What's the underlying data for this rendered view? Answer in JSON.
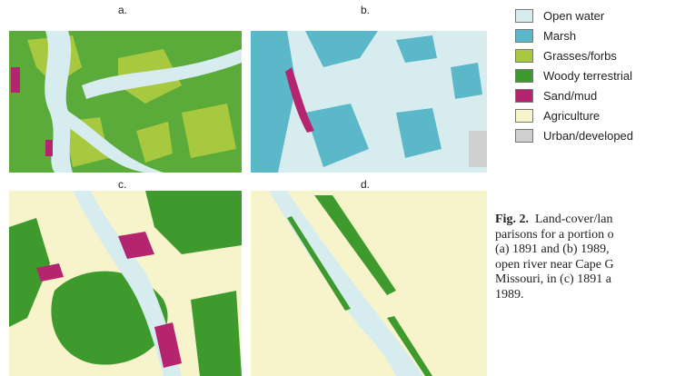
{
  "panels": [
    {
      "label": "a."
    },
    {
      "label": "b."
    },
    {
      "label": "c."
    },
    {
      "label": "d."
    }
  ],
  "legend": [
    {
      "label": "Open water",
      "color": "#d7ecef"
    },
    {
      "label": "Marsh",
      "color": "#5bb8c8"
    },
    {
      "label": "Grasses/forbs",
      "color": "#a8c840"
    },
    {
      "label": "Woody terrestrial",
      "color": "#3f9a2e"
    },
    {
      "label": "Sand/mud",
      "color": "#b5246e"
    },
    {
      "label": "Agriculture",
      "color": "#f7f4cc"
    },
    {
      "label": "Urban/developed",
      "color": "#cfcfcf"
    }
  ],
  "caption": {
    "label": "Fig. 2.",
    "lines": [
      "Land-cover/lan",
      "parisons for a portion o",
      "(a) 1891 and (b) 1989,",
      "open river near Cape G",
      "Missouri, in (c) 1891 a",
      "1989."
    ]
  }
}
